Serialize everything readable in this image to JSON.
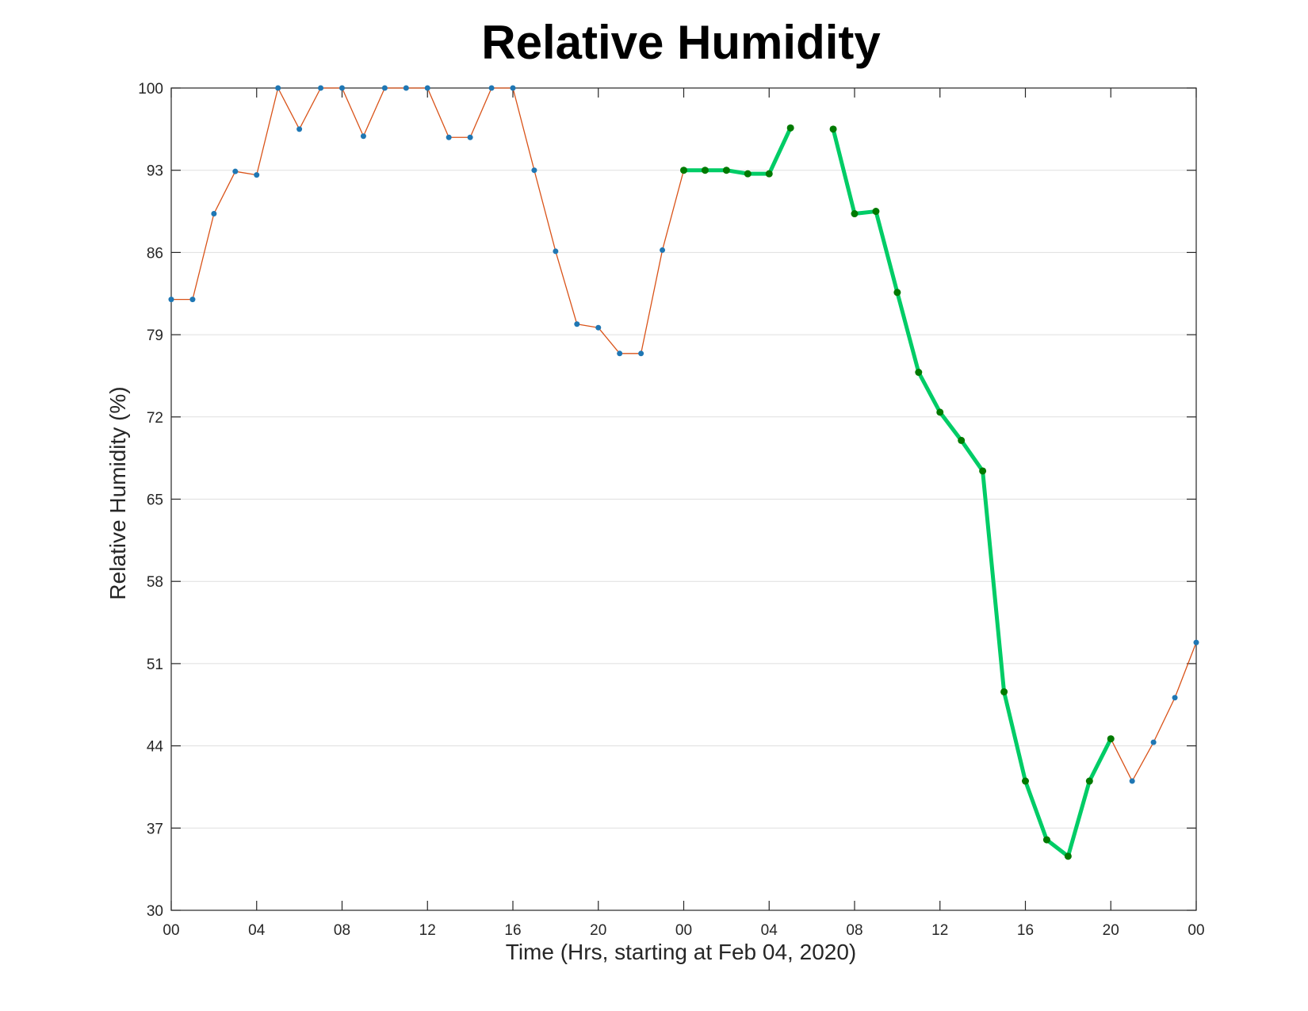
{
  "chart_data": {
    "type": "line",
    "title": "Relative Humidity",
    "xlabel": "Time (Hrs, starting at Feb 04, 2020)",
    "ylabel": "Relative Humidity (%)",
    "xlim": [
      0,
      48
    ],
    "ylim": [
      30,
      100
    ],
    "x_ticks": [
      0,
      4,
      8,
      12,
      16,
      20,
      24,
      28,
      32,
      36,
      40,
      44,
      48
    ],
    "x_tick_labels": [
      "00",
      "04",
      "08",
      "12",
      "16",
      "20",
      "00",
      "04",
      "08",
      "12",
      "16",
      "20",
      "00"
    ],
    "y_ticks": [
      30,
      37,
      44,
      51,
      58,
      65,
      72,
      79,
      86,
      93,
      100
    ],
    "y_tick_labels": [
      "30",
      "37",
      "44",
      "51",
      "58",
      "65",
      "72",
      "79",
      "86",
      "93",
      "100"
    ],
    "grid": "horizontal",
    "colors": {
      "thin_line": "#d95319",
      "marker_blue": "#1f77b4",
      "thick_line": "#00cc66",
      "marker_green": "#007a00",
      "grid": "#dfdfdf",
      "axis": "#262626"
    },
    "series": [
      {
        "style": "thin-line-with-dots",
        "x": [
          0,
          1,
          2,
          3,
          4,
          5,
          6,
          7,
          8,
          9,
          10,
          11,
          12,
          13,
          14,
          15,
          16,
          17,
          18,
          19,
          20,
          21,
          22,
          23,
          24,
          25,
          26,
          27,
          28,
          29,
          30,
          31,
          32,
          33,
          34,
          35,
          36,
          37,
          38,
          39,
          40,
          41,
          42,
          43,
          44,
          45,
          46,
          47,
          48
        ],
        "y": [
          82,
          82,
          89.3,
          92.9,
          92.6,
          100,
          96.5,
          100,
          100,
          95.9,
          100,
          100,
          100,
          95.8,
          95.8,
          100,
          100,
          93,
          86.1,
          79.9,
          79.6,
          77.4,
          77.4,
          86.2,
          93,
          93,
          93,
          92.7,
          92.7,
          96.6,
          null,
          96.5,
          89.3,
          89.5,
          82.6,
          75.8,
          72.4,
          70,
          67.4,
          48.6,
          41,
          36,
          34.6,
          41,
          44.6,
          41,
          44.3,
          48.1,
          52.8
        ]
      },
      {
        "style": "thick-line-with-dots",
        "x": [
          24,
          25,
          26,
          27,
          28,
          29,
          30,
          31,
          32,
          33,
          34,
          35,
          36,
          37,
          38,
          39,
          40,
          41,
          42,
          43,
          44
        ],
        "y": [
          93,
          93,
          93,
          92.7,
          92.7,
          96.6,
          null,
          96.5,
          89.3,
          89.5,
          82.6,
          75.8,
          72.4,
          70,
          67.4,
          48.6,
          41,
          36,
          34.6,
          41,
          44.6
        ]
      }
    ]
  }
}
